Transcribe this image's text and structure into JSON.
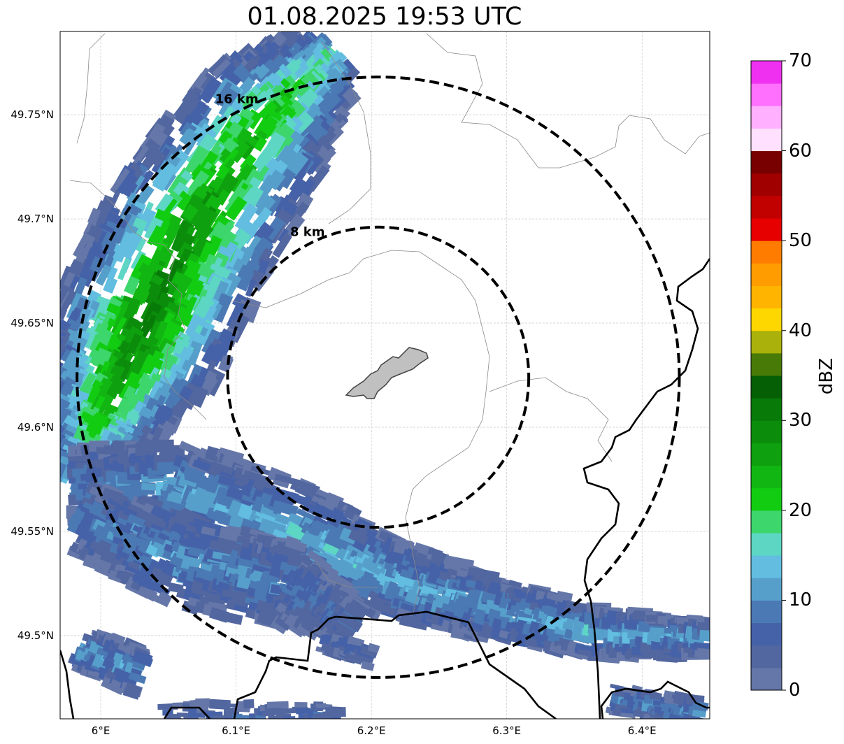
{
  "title": "01.08.2025 19:53 UTC",
  "map": {
    "lon_range": [
      5.97,
      6.45
    ],
    "lat_range": [
      49.46,
      49.79
    ],
    "lon_ticks": [
      {
        "value": 6.0,
        "label": "6°E"
      },
      {
        "value": 6.1,
        "label": "6.1°E"
      },
      {
        "value": 6.2,
        "label": "6.2°E"
      },
      {
        "value": 6.3,
        "label": "6.3°E"
      },
      {
        "value": 6.4,
        "label": "6.4°E"
      }
    ],
    "lat_ticks": [
      {
        "value": 49.75,
        "label": "49.75°N"
      },
      {
        "value": 49.7,
        "label": "49.7°N"
      },
      {
        "value": 49.65,
        "label": "49.65°N"
      },
      {
        "value": 49.6,
        "label": "49.6°N"
      },
      {
        "value": 49.55,
        "label": "49.55°N"
      },
      {
        "value": 49.5,
        "label": "49.5°N"
      }
    ],
    "grid": true,
    "rings": [
      {
        "radius_km": 8,
        "label": "8 km"
      },
      {
        "radius_km": 16,
        "label": "16 km"
      }
    ],
    "center": {
      "lon": 6.205,
      "lat": 49.624
    }
  },
  "colorbar": {
    "label": "dBZ",
    "min": 0,
    "max": 70,
    "step": 2.5,
    "ticks": [
      {
        "value": 0,
        "label": "0"
      },
      {
        "value": 10,
        "label": "10"
      },
      {
        "value": 20,
        "label": "20"
      },
      {
        "value": 30,
        "label": "30"
      },
      {
        "value": 40,
        "label": "40"
      },
      {
        "value": 50,
        "label": "50"
      },
      {
        "value": 60,
        "label": "60"
      },
      {
        "value": 70,
        "label": "70"
      }
    ],
    "colors": [
      "#6577a8",
      "#52669f",
      "#4562a8",
      "#4b79b3",
      "#579fcb",
      "#62bde0",
      "#5dd6c4",
      "#3cd66c",
      "#12cc12",
      "#12b612",
      "#0ea00e",
      "#0b8d0b",
      "#087a08",
      "#055f05",
      "#487a08",
      "#aab10a",
      "#ffd700",
      "#ffb400",
      "#ff9c00",
      "#ff7c00",
      "#e60000",
      "#c10000",
      "#a00000",
      "#780000",
      "#ffe0ff",
      "#ffb0ff",
      "#ff70ff",
      "#f030f0"
    ]
  }
}
